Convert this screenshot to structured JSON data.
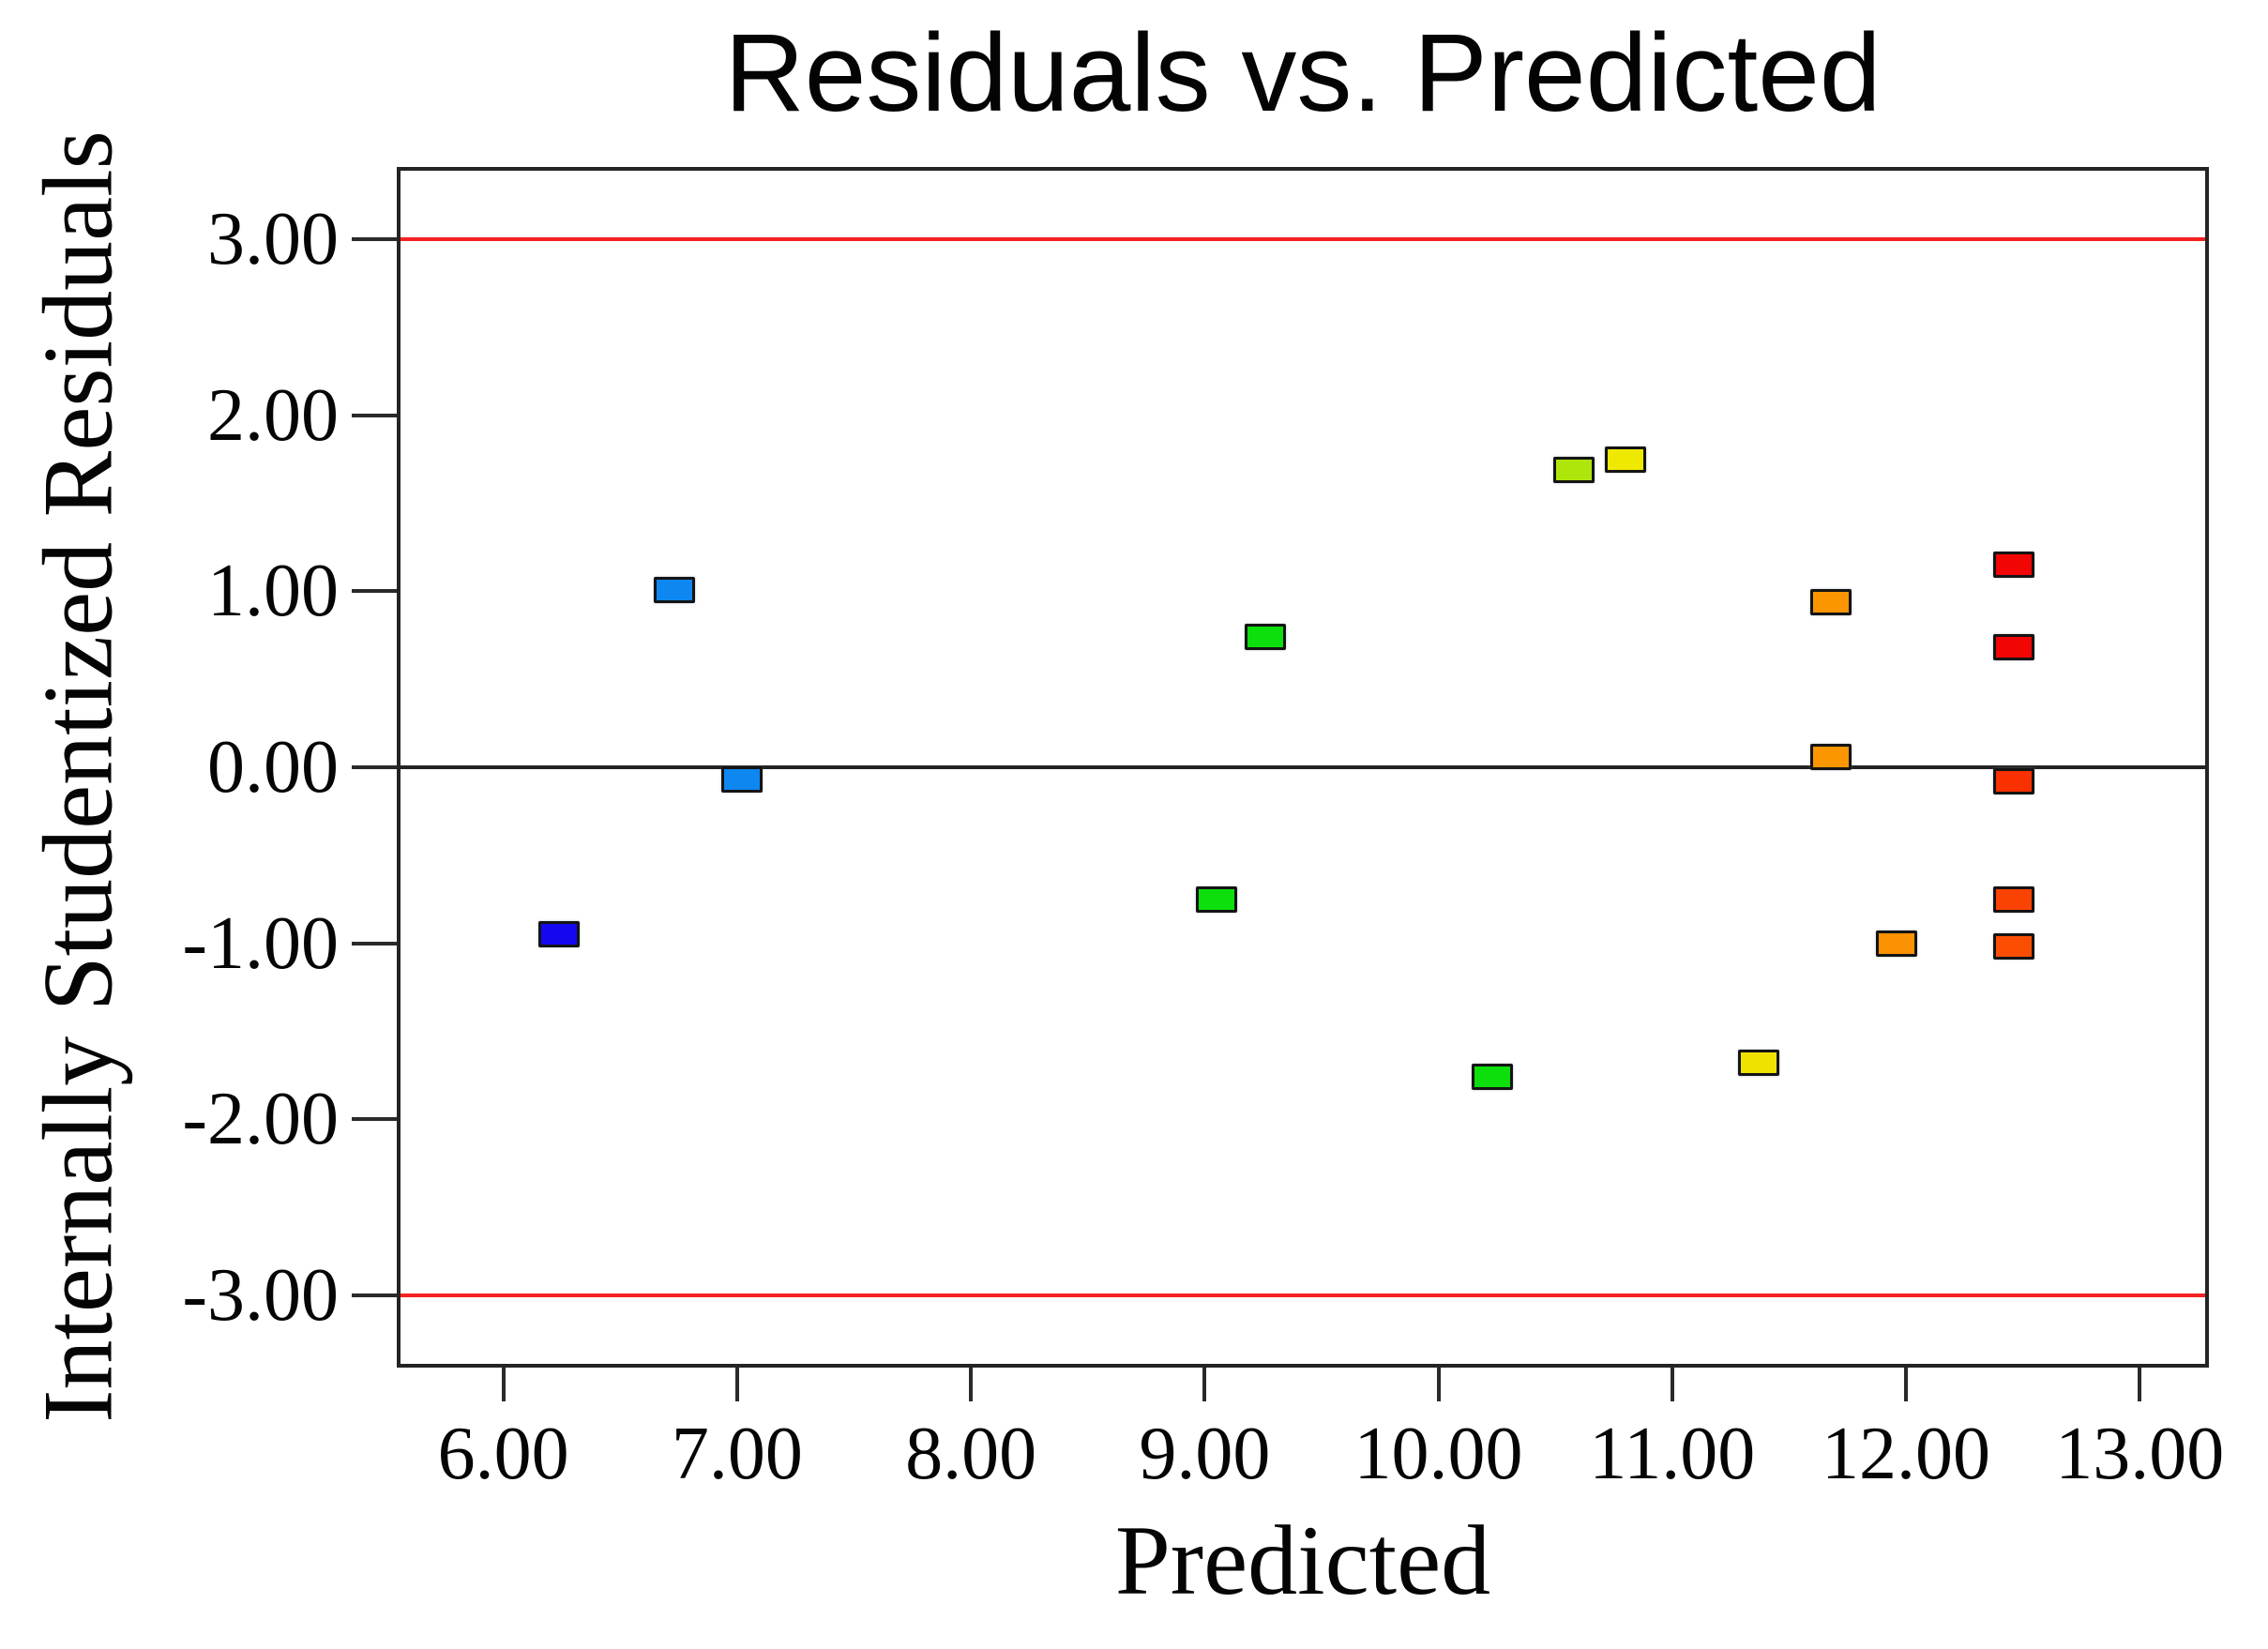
{
  "page": {
    "background": "#ffffff"
  },
  "chart_data": {
    "type": "scatter",
    "title": "Residuals vs. Predicted",
    "xlabel": "Predicted",
    "ylabel": "Internally Studentized Residuals",
    "grid": false,
    "legend_position": "none",
    "x_range": [
      5.56,
      13.28
    ],
    "y_range": [
      -3.39,
      3.39
    ],
    "x_ticks": [
      {
        "value": 6,
        "label": "6.00"
      },
      {
        "value": 7,
        "label": "7.00"
      },
      {
        "value": 8,
        "label": "8.00"
      },
      {
        "value": 9,
        "label": "9.00"
      },
      {
        "value": 10,
        "label": "10.00"
      },
      {
        "value": 11,
        "label": "11.00"
      },
      {
        "value": 12,
        "label": "12.00"
      },
      {
        "value": 13,
        "label": "13.00"
      }
    ],
    "y_ticks": [
      {
        "value": 3,
        "label": "3.00"
      },
      {
        "value": 2,
        "label": "2.00"
      },
      {
        "value": 1,
        "label": "1.00"
      },
      {
        "value": 0,
        "label": "0.00"
      },
      {
        "value": -1,
        "label": "-1.00"
      },
      {
        "value": -2,
        "label": "-2.00"
      },
      {
        "value": -3,
        "label": "-3.00"
      }
    ],
    "reference_lines": [
      {
        "name": "upper-limit",
        "value": 3.0,
        "color": "#f52222"
      },
      {
        "name": "zero",
        "value": 0.0,
        "color": "#232323"
      },
      {
        "name": "lower-limit",
        "value": -3.0,
        "color": "#f52222"
      }
    ],
    "marker": {
      "shape": "square",
      "width": 44,
      "height": 28,
      "border_color": "#141414",
      "border_width": 3
    },
    "points": [
      {
        "x": 6.24,
        "y": -0.95,
        "color": "#1507f0"
      },
      {
        "x": 6.73,
        "y": 1.01,
        "color": "#0e87f0"
      },
      {
        "x": 7.02,
        "y": -0.07,
        "color": "#0e87f0"
      },
      {
        "x": 9.05,
        "y": -0.75,
        "color": "#0cdf0c"
      },
      {
        "x": 9.26,
        "y": 0.74,
        "color": "#0cdf0c"
      },
      {
        "x": 10.23,
        "y": -1.76,
        "color": "#0cdf0c"
      },
      {
        "x": 10.58,
        "y": 1.69,
        "color": "#aee60b"
      },
      {
        "x": 10.8,
        "y": 1.75,
        "color": "#efe800"
      },
      {
        "x": 11.37,
        "y": -1.68,
        "color": "#f0e200"
      },
      {
        "x": 11.68,
        "y": 0.94,
        "color": "#fb9500"
      },
      {
        "x": 11.68,
        "y": 0.06,
        "color": "#fb9500"
      },
      {
        "x": 11.96,
        "y": -1.0,
        "color": "#fb9202"
      },
      {
        "x": 12.46,
        "y": 1.15,
        "color": "#f10505"
      },
      {
        "x": 12.46,
        "y": 0.68,
        "color": "#f10505"
      },
      {
        "x": 12.46,
        "y": -0.08,
        "color": "#f93000"
      },
      {
        "x": 12.46,
        "y": -0.75,
        "color": "#fa4302"
      },
      {
        "x": 12.46,
        "y": -1.02,
        "color": "#fb4e02"
      }
    ]
  }
}
